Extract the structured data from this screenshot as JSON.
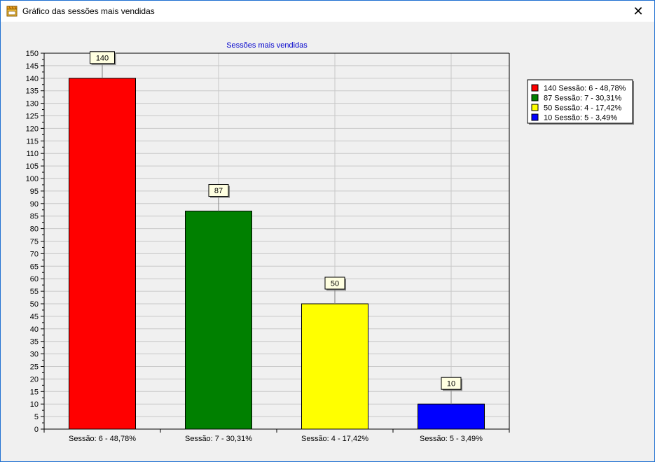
{
  "window": {
    "title": "Gráfico das sessões mais vendidas",
    "close_label": "✕"
  },
  "chart_data": {
    "type": "bar",
    "title": "Sessões mais vendidas",
    "categories": [
      "Sessão: 6 - 48,78%",
      "Sessão: 7 - 30,31%",
      "Sessão: 4 - 17,42%",
      "Sessão: 5 - 3,49%"
    ],
    "values": [
      140,
      87,
      50,
      10
    ],
    "colors": [
      "#ff0000",
      "#008000",
      "#ffff00",
      "#0000ff"
    ],
    "data_labels": [
      "140",
      "87",
      "50",
      "10"
    ],
    "legend": [
      {
        "label": "140 Sessão: 6 - 48,78%",
        "color": "#ff0000"
      },
      {
        "label": "87 Sessão: 7 - 30,31%",
        "color": "#008000"
      },
      {
        "label": "50 Sessão: 4 - 17,42%",
        "color": "#ffff00"
      },
      {
        "label": "10 Sessão: 5 - 3,49%",
        "color": "#0000ff"
      }
    ],
    "legend_position": "right",
    "ylim": [
      0,
      150
    ],
    "ytick_step": 5,
    "grid": true,
    "xlabel": "",
    "ylabel": ""
  }
}
